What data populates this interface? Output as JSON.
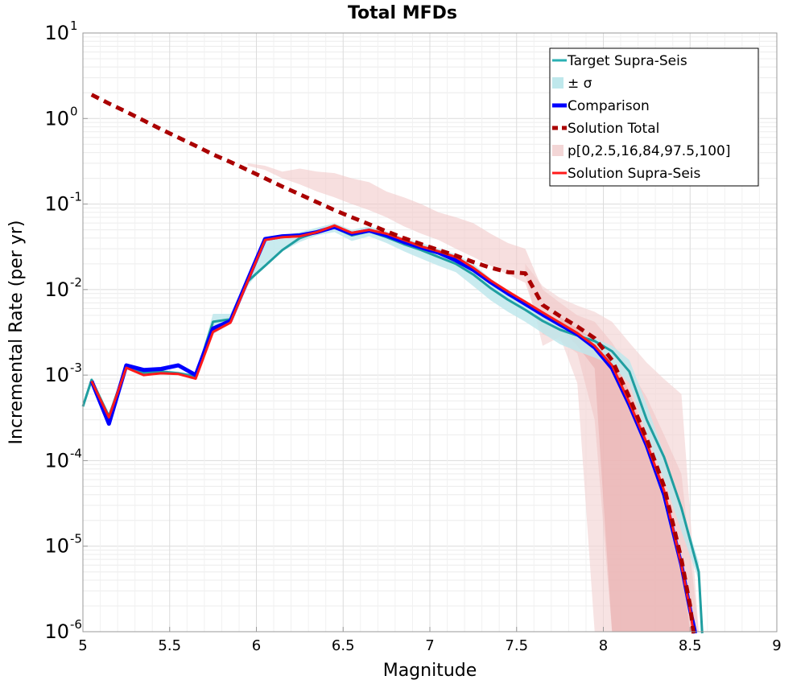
{
  "chart_data": {
    "type": "line",
    "title": "Total MFDs",
    "xlabel": "Magnitude",
    "ylabel": "Incremental Rate (per yr)",
    "xlim": [
      5,
      9
    ],
    "ylim_log10": [
      -6,
      1
    ],
    "xticks": [
      5,
      5.5,
      6,
      6.5,
      7,
      7.5,
      8,
      8.5,
      9
    ],
    "xtick_labels": [
      "5",
      "5.5",
      "6",
      "6.5",
      "7",
      "7.5",
      "8",
      "8.5",
      "9"
    ],
    "yticks": [
      {
        "exp": -6,
        "base": "10",
        "exp_label": "-6"
      },
      {
        "exp": -5,
        "base": "10",
        "exp_label": "-5"
      },
      {
        "exp": -4,
        "base": "10",
        "exp_label": "-4"
      },
      {
        "exp": -3,
        "base": "10",
        "exp_label": "-3"
      },
      {
        "exp": -2,
        "base": "10",
        "exp_label": "-2"
      },
      {
        "exp": -1,
        "base": "10",
        "exp_label": "-1"
      },
      {
        "exp": 0,
        "base": "10",
        "exp_label": "0"
      },
      {
        "exp": 1,
        "base": "10",
        "exp_label": "1"
      }
    ],
    "grid": true,
    "legend_position": "top-right",
    "legend": [
      {
        "label": "Target Supra-Seis",
        "type": "line",
        "color": "#2ab0b3",
        "width": 3,
        "dash": ""
      },
      {
        "label": "± σ",
        "type": "box",
        "color": "#bfe8ec"
      },
      {
        "label": "Comparison",
        "type": "line",
        "color": "#0000ff",
        "width": 5,
        "dash": ""
      },
      {
        "label": "Solution Total",
        "type": "line",
        "color": "#aa0000",
        "width": 5,
        "dash": "7,5"
      },
      {
        "label": "p[0,2.5,16,84,97.5,100]",
        "type": "box",
        "color": "#f3d6d6"
      },
      {
        "label": "Solution Supra-Seis",
        "type": "line",
        "color": "#ff1a1a",
        "width": 3,
        "dash": ""
      }
    ],
    "bands": [
      {
        "name": "p0-p100",
        "color": "#f3d4d4",
        "opacity": 0.65,
        "x": [
          7.55,
          7.65,
          7.75,
          7.85,
          7.95,
          8.05,
          8.15,
          8.25,
          8.35,
          8.45,
          8.55
        ],
        "lower": [
          0.015,
          0.0022,
          0.0028,
          0.0008,
          1e-06,
          1e-06,
          1e-06,
          1e-06,
          1e-06,
          1e-06,
          1e-06
        ],
        "upper": [
          0.02,
          0.011,
          0.008,
          0.0065,
          0.0055,
          0.0042,
          0.0024,
          0.0014,
          0.0009,
          0.0006,
          1e-06
        ]
      },
      {
        "name": "p2.5-p97.5",
        "color": "#f0c4c4",
        "opacity": 0.55,
        "x": [
          5.95,
          6.05,
          6.15,
          6.25,
          6.35,
          6.45,
          6.55,
          6.65,
          6.75,
          6.85,
          6.95,
          7.05,
          7.15,
          7.25,
          7.35,
          7.45,
          7.55,
          7.65,
          7.75,
          7.85,
          7.95,
          8.05,
          8.15,
          8.25,
          8.35,
          8.45,
          8.55
        ],
        "lower": [
          0.28,
          0.25,
          0.2,
          0.17,
          0.14,
          0.12,
          0.1,
          0.085,
          0.07,
          0.055,
          0.045,
          0.038,
          0.03,
          0.024,
          0.019,
          0.015,
          0.012,
          0.003,
          0.0025,
          0.0018,
          0.0003,
          1e-06,
          1e-06,
          1e-06,
          1e-06,
          1e-06,
          1e-06
        ],
        "upper": [
          0.3,
          0.28,
          0.24,
          0.26,
          0.24,
          0.23,
          0.2,
          0.18,
          0.14,
          0.12,
          0.1,
          0.08,
          0.07,
          0.06,
          0.045,
          0.035,
          0.03,
          0.01,
          0.007,
          0.005,
          0.0042,
          0.0024,
          0.0012,
          0.00055,
          0.0002,
          7e-05,
          1e-06
        ]
      },
      {
        "name": "p16-p84",
        "color": "#e8a8a8",
        "opacity": 0.5,
        "x": [
          7.75,
          7.85,
          7.95,
          8.05,
          8.15,
          8.25,
          8.35,
          8.45,
          8.5
        ],
        "lower": [
          0.0035,
          0.0022,
          0.0012,
          1e-06,
          1e-06,
          1e-06,
          1e-06,
          1e-06,
          1e-06
        ],
        "upper": [
          0.0048,
          0.0035,
          0.0026,
          0.0016,
          0.00065,
          0.00018,
          3e-05,
          6e-06,
          1e-06
        ]
      },
      {
        "name": "target ± sigma",
        "color": "#bfe8ec",
        "opacity": 0.85,
        "x": [
          5.05,
          5.15,
          5.25,
          5.35,
          5.45,
          5.55,
          5.65,
          5.75,
          5.85,
          5.95,
          6.05,
          6.15,
          6.25,
          6.35,
          6.45,
          6.55,
          6.65,
          6.75,
          6.85,
          6.95,
          7.05,
          7.15,
          7.25,
          7.35,
          7.45,
          7.55,
          7.65,
          7.75,
          7.85,
          7.95,
          8.05,
          8.15,
          8.25,
          8.35,
          8.45,
          8.55
        ],
        "lower": [
          0.0008,
          0.00032,
          0.0012,
          0.001,
          0.00105,
          0.001,
          0.00095,
          0.003,
          0.004,
          0.011,
          0.02,
          0.028,
          0.036,
          0.043,
          0.047,
          0.037,
          0.042,
          0.035,
          0.028,
          0.023,
          0.019,
          0.016,
          0.011,
          0.0075,
          0.0055,
          0.0042,
          0.0031,
          0.0023,
          0.0019,
          0.0016,
          0.0013,
          0.0008,
          0.0002,
          6e-05,
          1.5e-05,
          4e-06
        ],
        "upper": [
          0.00095,
          0.00035,
          0.0013,
          0.0011,
          0.00115,
          0.0011,
          0.001,
          0.0052,
          0.0052,
          0.014,
          0.04,
          0.043,
          0.047,
          0.053,
          0.06,
          0.05,
          0.055,
          0.048,
          0.04,
          0.035,
          0.03,
          0.026,
          0.02,
          0.0135,
          0.0095,
          0.0075,
          0.0052,
          0.0037,
          0.0031,
          0.0027,
          0.0022,
          0.0015,
          0.00045,
          0.00012,
          3e-05,
          6.5e-06
        ]
      }
    ],
    "series": [
      {
        "name": "Target Supra-Seis",
        "color": "#1f9ea0",
        "width": 3,
        "dash": "",
        "x": [
          5.0,
          5.05,
          5.15,
          5.25,
          5.35,
          5.45,
          5.55,
          5.65,
          5.75,
          5.85,
          5.95,
          6.05,
          6.15,
          6.25,
          6.35,
          6.45,
          6.55,
          6.65,
          6.75,
          6.85,
          6.95,
          7.05,
          7.15,
          7.25,
          7.35,
          7.45,
          7.55,
          7.65,
          7.75,
          7.85,
          7.95,
          8.05,
          8.15,
          8.25,
          8.35,
          8.45,
          8.55,
          8.57
        ],
        "y": [
          0.00043,
          0.00088,
          0.00033,
          0.00125,
          0.00107,
          0.0011,
          0.00105,
          0.00097,
          0.0042,
          0.0045,
          0.0125,
          0.019,
          0.029,
          0.04,
          0.047,
          0.053,
          0.043,
          0.048,
          0.041,
          0.034,
          0.029,
          0.024,
          0.02,
          0.015,
          0.0104,
          0.0076,
          0.0058,
          0.0043,
          0.0034,
          0.0029,
          0.0025,
          0.0019,
          0.0011,
          0.0003,
          0.00011,
          2.8e-05,
          5e-06,
          9e-07
        ]
      },
      {
        "name": "Comparison",
        "color": "#0000ff",
        "width": 5,
        "dash": "",
        "x": [
          5.05,
          5.15,
          5.25,
          5.35,
          5.45,
          5.55,
          5.65,
          5.75,
          5.85,
          5.95,
          6.05,
          6.15,
          6.25,
          6.35,
          6.45,
          6.55,
          6.65,
          6.75,
          6.85,
          6.95,
          7.05,
          7.15,
          7.25,
          7.35,
          7.45,
          7.55,
          7.65,
          7.75,
          7.85,
          7.95,
          8.05,
          8.15,
          8.25,
          8.35,
          8.45,
          8.5,
          8.53
        ],
        "y": [
          0.00085,
          0.00027,
          0.0013,
          0.00115,
          0.00118,
          0.0013,
          0.001,
          0.0035,
          0.0043,
          0.013,
          0.039,
          0.042,
          0.043,
          0.047,
          0.054,
          0.045,
          0.049,
          0.043,
          0.036,
          0.031,
          0.027,
          0.022,
          0.017,
          0.0122,
          0.009,
          0.0068,
          0.0051,
          0.0039,
          0.003,
          0.0021,
          0.0012,
          0.00045,
          0.00015,
          4e-05,
          6e-06,
          1.8e-06,
          9e-07
        ]
      },
      {
        "name": "Solution Supra-Seis",
        "color": "#ff1a1a",
        "width": 3,
        "dash": "",
        "x": [
          5.05,
          5.15,
          5.25,
          5.35,
          5.45,
          5.55,
          5.65,
          5.75,
          5.85,
          5.95,
          6.05,
          6.15,
          6.25,
          6.35,
          6.45,
          6.55,
          6.65,
          6.75,
          6.85,
          6.95,
          7.05,
          7.15,
          7.25,
          7.35,
          7.45,
          7.55,
          7.65,
          7.75,
          7.85,
          7.95,
          8.05,
          8.15,
          8.25,
          8.35,
          8.45,
          8.5,
          8.52
        ],
        "y": [
          0.00085,
          0.00032,
          0.00122,
          0.001,
          0.00105,
          0.00103,
          0.00091,
          0.0032,
          0.0041,
          0.0125,
          0.038,
          0.041,
          0.042,
          0.047,
          0.056,
          0.046,
          0.05,
          0.045,
          0.038,
          0.032,
          0.028,
          0.024,
          0.018,
          0.0128,
          0.0095,
          0.0072,
          0.0054,
          0.0041,
          0.0031,
          0.0022,
          0.0013,
          0.00048,
          0.00016,
          4.5e-05,
          6e-06,
          1.8e-06,
          9e-07
        ]
      },
      {
        "name": "Solution Total",
        "color": "#aa0000",
        "width": 5,
        "dash": "10,7",
        "x": [
          5.05,
          5.15,
          5.25,
          5.35,
          5.45,
          5.55,
          5.65,
          5.75,
          5.85,
          5.95,
          6.05,
          6.15,
          6.25,
          6.35,
          6.45,
          6.55,
          6.65,
          6.75,
          6.85,
          6.95,
          7.05,
          7.15,
          7.25,
          7.35,
          7.45,
          7.55,
          7.65,
          7.75,
          7.85,
          7.95,
          8.05,
          8.15,
          8.25,
          8.35,
          8.45,
          8.5,
          8.52
        ],
        "y": [
          1.9,
          1.5,
          1.2,
          0.95,
          0.75,
          0.6,
          0.48,
          0.38,
          0.31,
          0.25,
          0.2,
          0.16,
          0.13,
          0.105,
          0.085,
          0.07,
          0.058,
          0.048,
          0.04,
          0.034,
          0.029,
          0.025,
          0.021,
          0.018,
          0.016,
          0.0155,
          0.0066,
          0.0049,
          0.0037,
          0.0027,
          0.0015,
          0.00055,
          0.00018,
          5e-05,
          7e-06,
          2e-06,
          9e-07
        ]
      }
    ]
  }
}
